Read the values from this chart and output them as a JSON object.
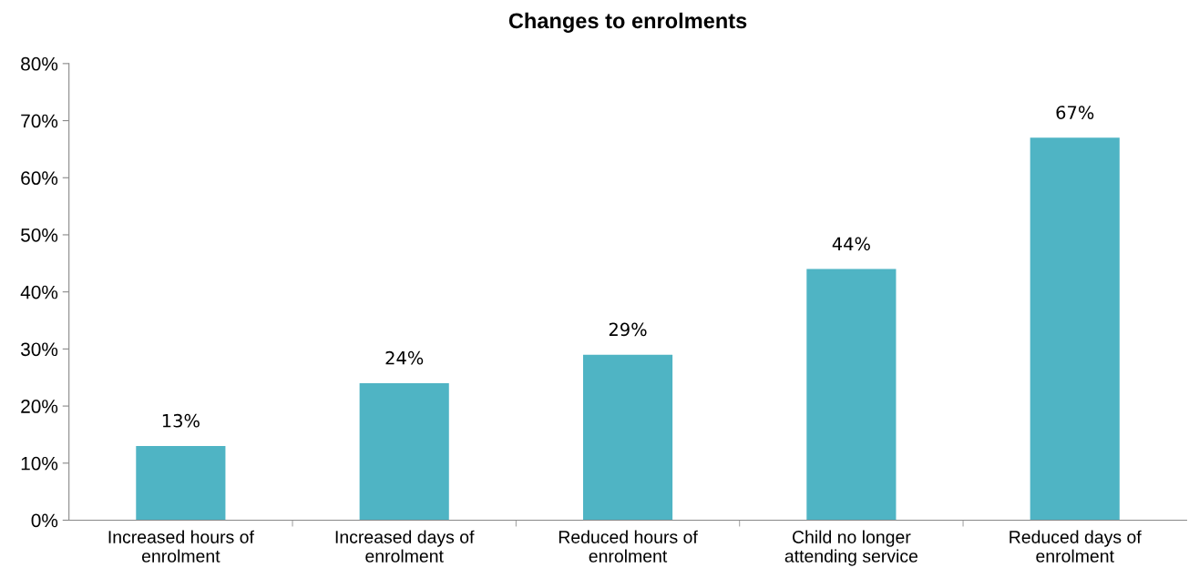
{
  "chart_data": {
    "type": "bar",
    "title": "Changes to enrolments",
    "categories": [
      "Increased hours of\nenrolment",
      "Increased days of\nenrolment",
      "Reduced hours of\nenrolment",
      "Child no longer\nattending service",
      "Reduced days of\nenrolment"
    ],
    "values": [
      13,
      24,
      29,
      44,
      67
    ],
    "value_labels": [
      "13%",
      "24%",
      "29%",
      "44%",
      "67%"
    ],
    "color": "#4fb4c4",
    "ylim": [
      0,
      80
    ],
    "yticks": [
      {
        "value": 0,
        "label": "0%"
      },
      {
        "value": 10,
        "label": "10%"
      },
      {
        "value": 20,
        "label": "20%"
      },
      {
        "value": 30,
        "label": "30%"
      },
      {
        "value": 40,
        "label": "40%"
      },
      {
        "value": 50,
        "label": "50%"
      },
      {
        "value": 60,
        "label": "60%"
      },
      {
        "value": 70,
        "label": "70%"
      },
      {
        "value": 80,
        "label": "80%"
      }
    ],
    "grid": false,
    "legend": false
  }
}
